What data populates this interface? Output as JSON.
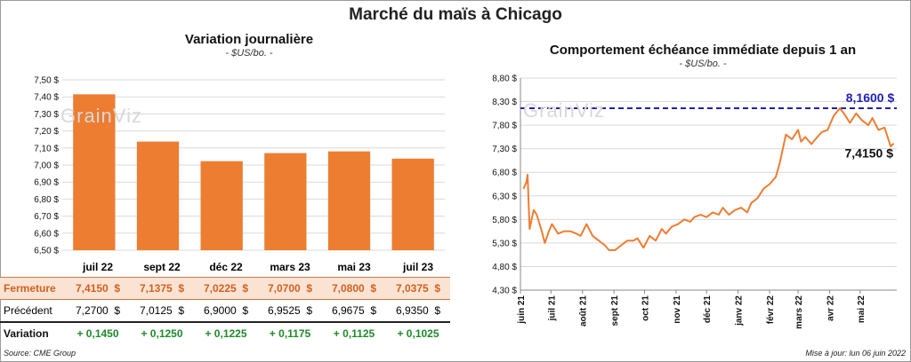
{
  "title": "Marché du maïs à Chicago",
  "left": {
    "subtitle": "Variation journalière",
    "unit": "- $US/bo. -",
    "watermark": "GrainViz"
  },
  "right": {
    "subtitle": "Comportement échéance immédiate depuis 1 an",
    "unit": "- $US/bo. -",
    "watermark": "GrainViz"
  },
  "table": {
    "headers": [
      "juil 22",
      "sept 22",
      "déc 22",
      "mars 23",
      "mai 23",
      "juil 23"
    ],
    "rows": [
      {
        "label": "Fermeture",
        "values": [
          "7,4150",
          "7,1375",
          "7,0225",
          "7,0700",
          "7,0800",
          "7,0375"
        ],
        "unit": "$"
      },
      {
        "label": "Précédent",
        "values": [
          "7,2700",
          "7,0125",
          "6,9000",
          "6,9525",
          "6,9675",
          "6,9350"
        ],
        "unit": "$"
      },
      {
        "label": "Variation",
        "values": [
          "+ 0,1450",
          "+ 0,1250",
          "+ 0,1225",
          "+ 0,1175",
          "+ 0,1125",
          "+ 0,1025"
        ],
        "unit": ""
      }
    ]
  },
  "footer": {
    "source": "Source: CME Group",
    "update": "Mise à jour: lun 06 juin 2022"
  },
  "colors": {
    "bar": "#ed7d31",
    "line": "#ed7d31",
    "ref_line": "#1f1fb4",
    "grid": "#d9d9d9",
    "positive": "#1f8a2a"
  },
  "chart_data": [
    {
      "type": "bar",
      "title": "Variation journalière",
      "ylabel": "- $US/bo. -",
      "categories": [
        "juil 22",
        "sept 22",
        "déc 22",
        "mars 23",
        "mai 23",
        "juil 23"
      ],
      "values": [
        7.415,
        7.1375,
        7.0225,
        7.07,
        7.08,
        7.0375
      ],
      "ylim": [
        6.5,
        7.5
      ],
      "yticks": [
        6.5,
        6.6,
        6.7,
        6.8,
        6.9,
        7.0,
        7.1,
        7.2,
        7.3,
        7.4,
        7.5
      ],
      "ytick_labels": [
        "6,50 $",
        "6,60 $",
        "6,70 $",
        "6,80 $",
        "6,90 $",
        "7,00 $",
        "7,10 $",
        "7,20 $",
        "7,30 $",
        "7,40 $",
        "7,50 $"
      ],
      "grid": true
    },
    {
      "type": "line",
      "title": "Comportement échéance immédiate depuis 1 an",
      "ylabel": "- $US/bo. -",
      "ylim": [
        4.3,
        8.8
      ],
      "yticks": [
        4.3,
        4.8,
        5.3,
        5.8,
        6.3,
        6.8,
        7.3,
        7.8,
        8.3,
        8.8
      ],
      "ytick_labels": [
        "4,30 $",
        "4,80 $",
        "5,30 $",
        "5,80 $",
        "6,30 $",
        "6,80 $",
        "7,30 $",
        "7,80 $",
        "8,30 $",
        "8,80 $"
      ],
      "xticks": [
        "juin 21",
        "juil 21",
        "août 21",
        "sept 21",
        "oct 21",
        "nov 21",
        "déc 21",
        "janv 22",
        "févr 22",
        "mars 22",
        "avr 22",
        "mai 22"
      ],
      "x": [
        "2021-06-04",
        "2021-06-07",
        "2021-06-08",
        "2021-06-10",
        "2021-06-14",
        "2021-06-17",
        "2021-06-22",
        "2021-06-25",
        "2021-06-29",
        "2021-07-02",
        "2021-07-08",
        "2021-07-14",
        "2021-07-20",
        "2021-07-26",
        "2021-07-30",
        "2021-08-05",
        "2021-08-11",
        "2021-08-17",
        "2021-08-23",
        "2021-08-27",
        "2021-09-02",
        "2021-09-08",
        "2021-09-14",
        "2021-09-20",
        "2021-09-24",
        "2021-09-30",
        "2021-10-06",
        "2021-10-12",
        "2021-10-18",
        "2021-10-22",
        "2021-10-28",
        "2021-11-03",
        "2021-11-09",
        "2021-11-15",
        "2021-11-19",
        "2021-11-25",
        "2021-12-01",
        "2021-12-07",
        "2021-12-13",
        "2021-12-17",
        "2021-12-23",
        "2021-12-29",
        "2022-01-04",
        "2022-01-10",
        "2022-01-14",
        "2022-01-20",
        "2022-01-26",
        "2022-02-01",
        "2022-02-07",
        "2022-02-11",
        "2022-02-17",
        "2022-02-23",
        "2022-03-01",
        "2022-03-04",
        "2022-03-08",
        "2022-03-14",
        "2022-03-18",
        "2022-03-24",
        "2022-03-30",
        "2022-04-05",
        "2022-04-11",
        "2022-04-15",
        "2022-04-21",
        "2022-04-27",
        "2022-05-03",
        "2022-05-09",
        "2022-05-13",
        "2022-05-19",
        "2022-05-25",
        "2022-05-31",
        "2022-06-03"
      ],
      "values": [
        6.45,
        6.6,
        6.75,
        5.6,
        6.0,
        5.9,
        5.55,
        5.3,
        5.55,
        5.7,
        5.5,
        5.55,
        5.55,
        5.5,
        5.45,
        5.7,
        5.45,
        5.35,
        5.25,
        5.15,
        5.15,
        5.25,
        5.35,
        5.35,
        5.4,
        5.2,
        5.45,
        5.35,
        5.6,
        5.5,
        5.65,
        5.7,
        5.8,
        5.75,
        5.85,
        5.9,
        5.85,
        5.95,
        5.9,
        6.05,
        5.9,
        6.0,
        6.05,
        5.95,
        6.15,
        6.25,
        6.45,
        6.55,
        6.7,
        7.0,
        7.6,
        7.5,
        7.7,
        7.45,
        7.55,
        7.4,
        7.5,
        7.65,
        7.7,
        8.0,
        8.16,
        8.05,
        7.85,
        8.05,
        7.9,
        7.8,
        7.95,
        7.7,
        7.75,
        7.35,
        7.415
      ],
      "reference_line": {
        "value": 8.16,
        "label": "8,1600 $"
      },
      "last_label": "7,4150 $",
      "grid": true
    }
  ]
}
